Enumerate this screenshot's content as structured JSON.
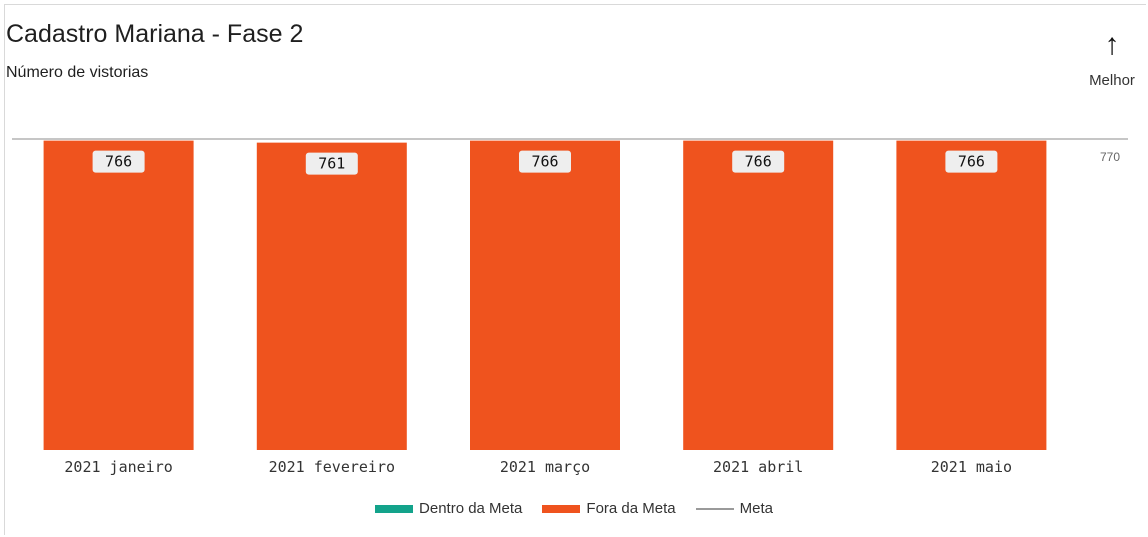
{
  "header": {
    "title": "Cadastro Mariana - Fase 2",
    "subtitle": "Número de vistorias",
    "better_arrow": "↑",
    "better_label": "Melhor"
  },
  "colors": {
    "inside_target": "#13a38b",
    "outside_target": "#ef531e",
    "target_line": "#b3b3b3",
    "label_bg": "#eeeeee"
  },
  "legend": [
    {
      "label": "Dentro da Meta",
      "kind": "swatch",
      "color": "#13a38b"
    },
    {
      "label": "Fora da Meta",
      "kind": "swatch",
      "color": "#ef531e"
    },
    {
      "label": "Meta",
      "kind": "line",
      "color": "#9a9a9a"
    }
  ],
  "chart_data": {
    "type": "bar",
    "categories": [
      "2021 janeiro",
      "2021 fevereiro",
      "2021 março",
      "2021 abril",
      "2021 maio"
    ],
    "series": [
      {
        "name": "Fora da Meta",
        "values": [
          766,
          761,
          766,
          766,
          766
        ]
      },
      {
        "name": "Dentro da Meta",
        "values": [
          0,
          0,
          0,
          0,
          0
        ]
      }
    ],
    "target": {
      "name": "Meta",
      "value": 770,
      "label": "770"
    },
    "data_labels": [
      "766",
      "761",
      "766",
      "766",
      "766"
    ],
    "ylim": [
      0,
      770
    ],
    "grid": false,
    "legend_position": "bottom-center"
  }
}
